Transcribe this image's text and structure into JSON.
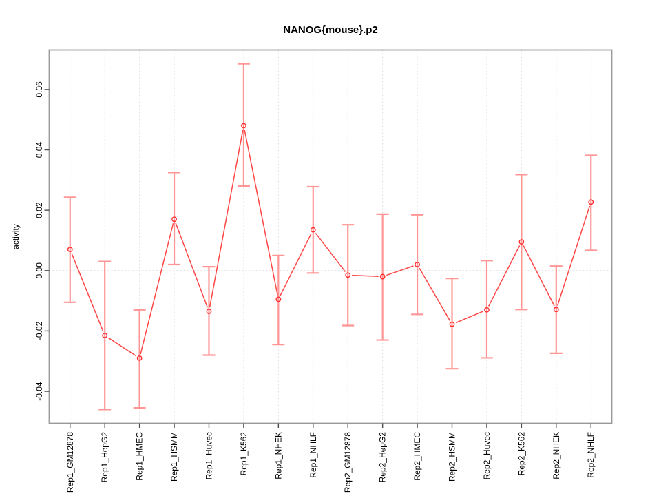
{
  "title": "NANOG{mouse}.p2",
  "chart_data": {
    "type": "line",
    "title": "NANOG{mouse}.p2",
    "xlabel": "",
    "ylabel": "activity",
    "legend": "none",
    "grid": "vertical-dotted-per-category-plus-dotted-zero-line",
    "categories": [
      "Rep1_GM12878",
      "Rep1_HepG2",
      "Rep1_HMEC",
      "Rep1_HSMM",
      "Rep1_Huvec",
      "Rep1_K562",
      "Rep1_NHEK",
      "Rep1_NHLF",
      "Rep2_GM12878",
      "Rep2_HepG2",
      "Rep2_HMEC",
      "Rep2_HSMM",
      "Rep2_Huvec",
      "Rep2_K562",
      "Rep2_NHEK",
      "Rep2_NHLF"
    ],
    "series": [
      {
        "name": "activity",
        "marker": "open-circle",
        "values": [
          0.007,
          -0.0215,
          -0.029,
          0.017,
          -0.0135,
          0.048,
          -0.0095,
          0.0135,
          -0.0015,
          -0.002,
          0.002,
          -0.0178,
          -0.013,
          0.0095,
          -0.0129,
          0.0227
        ],
        "error_low": [
          -0.0105,
          -0.046,
          -0.0455,
          0.002,
          -0.028,
          0.028,
          -0.0245,
          -0.0008,
          -0.0182,
          -0.023,
          -0.0145,
          -0.0325,
          -0.0289,
          -0.0129,
          -0.0274,
          0.0067
        ],
        "error_high": [
          0.0243,
          0.003,
          -0.013,
          0.0325,
          0.0013,
          0.0685,
          0.005,
          0.0278,
          0.0152,
          0.0187,
          0.0185,
          -0.0026,
          0.0033,
          0.0318,
          0.0015,
          0.0382
        ]
      }
    ],
    "ytick_labels": [
      "-0.04",
      "-0.02",
      "0.00",
      "0.02",
      "0.04",
      "0.06"
    ],
    "ytick_values": [
      -0.04,
      -0.02,
      0.0,
      0.02,
      0.04,
      0.06
    ],
    "ylim": [
      -0.0506,
      0.0731
    ],
    "zero_line": 0.0,
    "colors": {
      "line": "#ff4545",
      "point": "#ff2d2d",
      "error_bar": "#ff9595",
      "grid": "#dedede",
      "zero_line": "#d9d9d9",
      "box": "#9a9a9a",
      "tick": "#4d4d4d",
      "text": "#000000",
      "background": "#ffffff"
    }
  }
}
